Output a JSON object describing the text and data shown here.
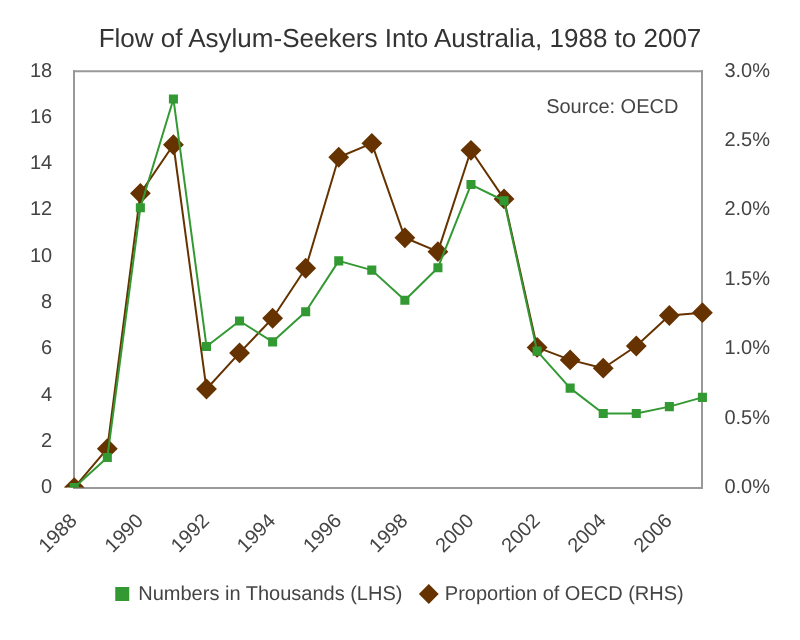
{
  "chart_data": {
    "type": "line",
    "title": "Flow of Asylum-Seekers Into Australia, 1988 to 2007",
    "categories": [
      "1988",
      null,
      "1990",
      null,
      "1992",
      null,
      "1994",
      null,
      "1996",
      null,
      "1998",
      null,
      "2000",
      null,
      "2002",
      null,
      "2004",
      null,
      "2006",
      null
    ],
    "series": [
      {
        "name": "Numbers in Thousands (LHS)",
        "color": "#339933",
        "marker": "square",
        "values": [
          0,
          1.3,
          12.1,
          16.8,
          6.1,
          7.2,
          6.3,
          7.6,
          9.8,
          9.4,
          8.1,
          9.5,
          13.1,
          12.4,
          5.9,
          4.3,
          3.2,
          3.2,
          3.5,
          3.9
        ]
      },
      {
        "name": "Proportion of OECD (RHS)",
        "color": "#663300",
        "marker": "diamond",
        "axis": "y2",
        "values": [
          0,
          0.28,
          2.12,
          2.47,
          0.71,
          0.97,
          1.22,
          1.58,
          2.38,
          2.48,
          1.8,
          1.7,
          2.43,
          2.08,
          1.01,
          0.92,
          0.86,
          1.02,
          1.24,
          1.26
        ]
      }
    ],
    "ylim": [
      0,
      18
    ],
    "yticks": [
      0,
      2,
      4,
      6,
      8,
      10,
      12,
      14,
      16,
      18
    ],
    "y2lim": [
      0,
      3
    ],
    "y2ticks": [
      {
        "value": 0,
        "label": "0.0%"
      },
      {
        "value": 0.5,
        "label": "0.5%"
      },
      {
        "value": 1,
        "label": "1.0%"
      },
      {
        "value": 1.5,
        "label": "1.5%"
      },
      {
        "value": 2,
        "label": "2.0%"
      },
      {
        "value": 2.5,
        "label": "2.5%"
      },
      {
        "value": 3,
        "label": "3.0%"
      }
    ],
    "annotations": [
      "Source: OECD"
    ],
    "grid": false,
    "legend": "bottom",
    "line_style": "solid"
  }
}
